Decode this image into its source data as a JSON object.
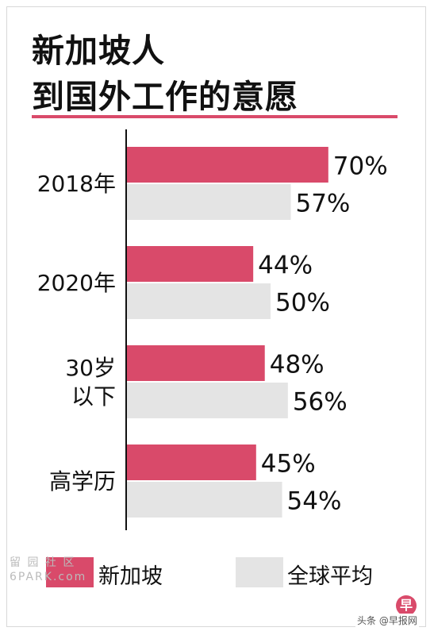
{
  "title_line1": "新加坡人",
  "title_line2": "到国外工作的意愿",
  "chart_data": {
    "type": "bar",
    "orientation": "horizontal",
    "categories": [
      [
        "2018年"
      ],
      [
        "2020年"
      ],
      [
        "30岁",
        "以下"
      ],
      [
        "高学历"
      ]
    ],
    "series": [
      {
        "name": "新加坡",
        "values": [
          70,
          44,
          48,
          45
        ],
        "color": "#d94a6a"
      },
      {
        "name": "全球平均",
        "values": [
          57,
          50,
          56,
          54
        ],
        "color": "#e4e4e4"
      }
    ],
    "value_suffix": "%",
    "xlim": [
      0,
      100
    ]
  },
  "legend": {
    "singapore_label": "新加坡",
    "global_label": "全球平均"
  },
  "watermark": {
    "line1": "留 园 社 区",
    "line2": "6PARK.com"
  },
  "footer": {
    "logo_glyph": "早",
    "source_text": "头条 @早报网"
  }
}
